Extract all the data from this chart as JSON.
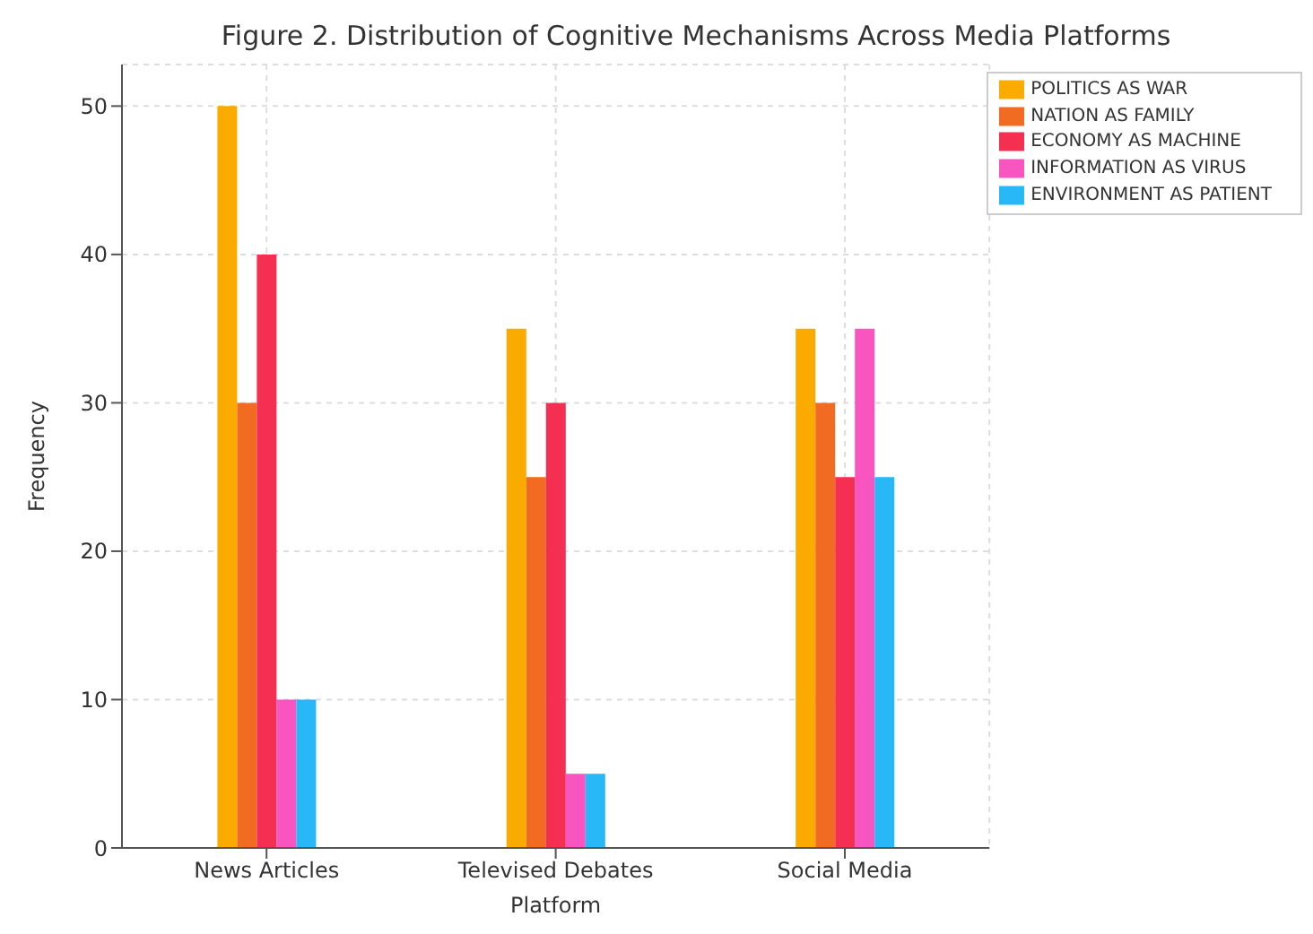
{
  "chart_data": {
    "type": "bar",
    "title": "Figure 2. Distribution of Cognitive Mechanisms Across Media Platforms",
    "xlabel": "Platform",
    "ylabel": "Frequency",
    "categories": [
      "News Articles",
      "Televised Debates",
      "Social Media"
    ],
    "series": [
      {
        "name": "POLITICS AS WAR",
        "color": "#fbab00",
        "values": [
          50,
          35,
          35
        ]
      },
      {
        "name": "NATION AS FAMILY",
        "color": "#f26b22",
        "values": [
          30,
          25,
          30
        ]
      },
      {
        "name": "ECONOMY AS MACHINE",
        "color": "#f42f52",
        "values": [
          40,
          30,
          25
        ]
      },
      {
        "name": "INFORMATION AS VIRUS",
        "color": "#f955c0",
        "values": [
          10,
          5,
          35
        ]
      },
      {
        "name": "ENVIRONMENT AS PATIENT",
        "color": "#28b8f8",
        "values": [
          10,
          5,
          25
        ]
      }
    ],
    "ylim": [
      0,
      52.8
    ],
    "yticks": [
      0,
      10,
      20,
      30,
      40,
      50
    ],
    "grid": true,
    "legend": "top right"
  }
}
